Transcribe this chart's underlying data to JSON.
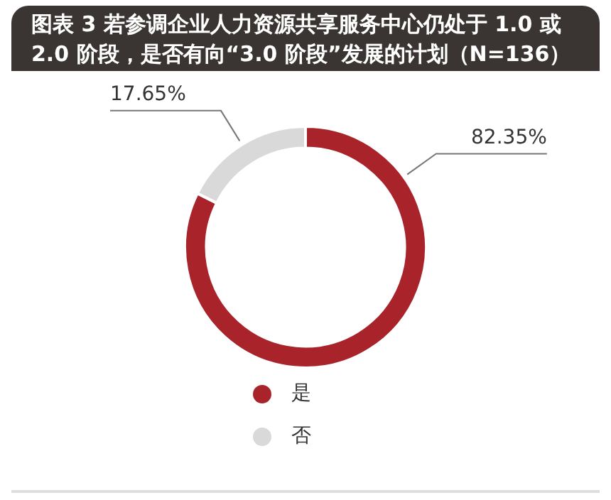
{
  "chart_data": {
    "type": "donut",
    "title": "图表 3 若参调企业人力资源共享服务中心仍处于 1.0 或 2.0 阶段，是否有向“3.0 阶段”发展的计划（N=136）",
    "categories": [
      "是",
      "否"
    ],
    "values": [
      82.35,
      17.65
    ],
    "colors": [
      "#a8232a",
      "#d9d9d9"
    ],
    "value_labels": [
      "82.35%",
      "17.65%"
    ],
    "legend": "bottom"
  }
}
